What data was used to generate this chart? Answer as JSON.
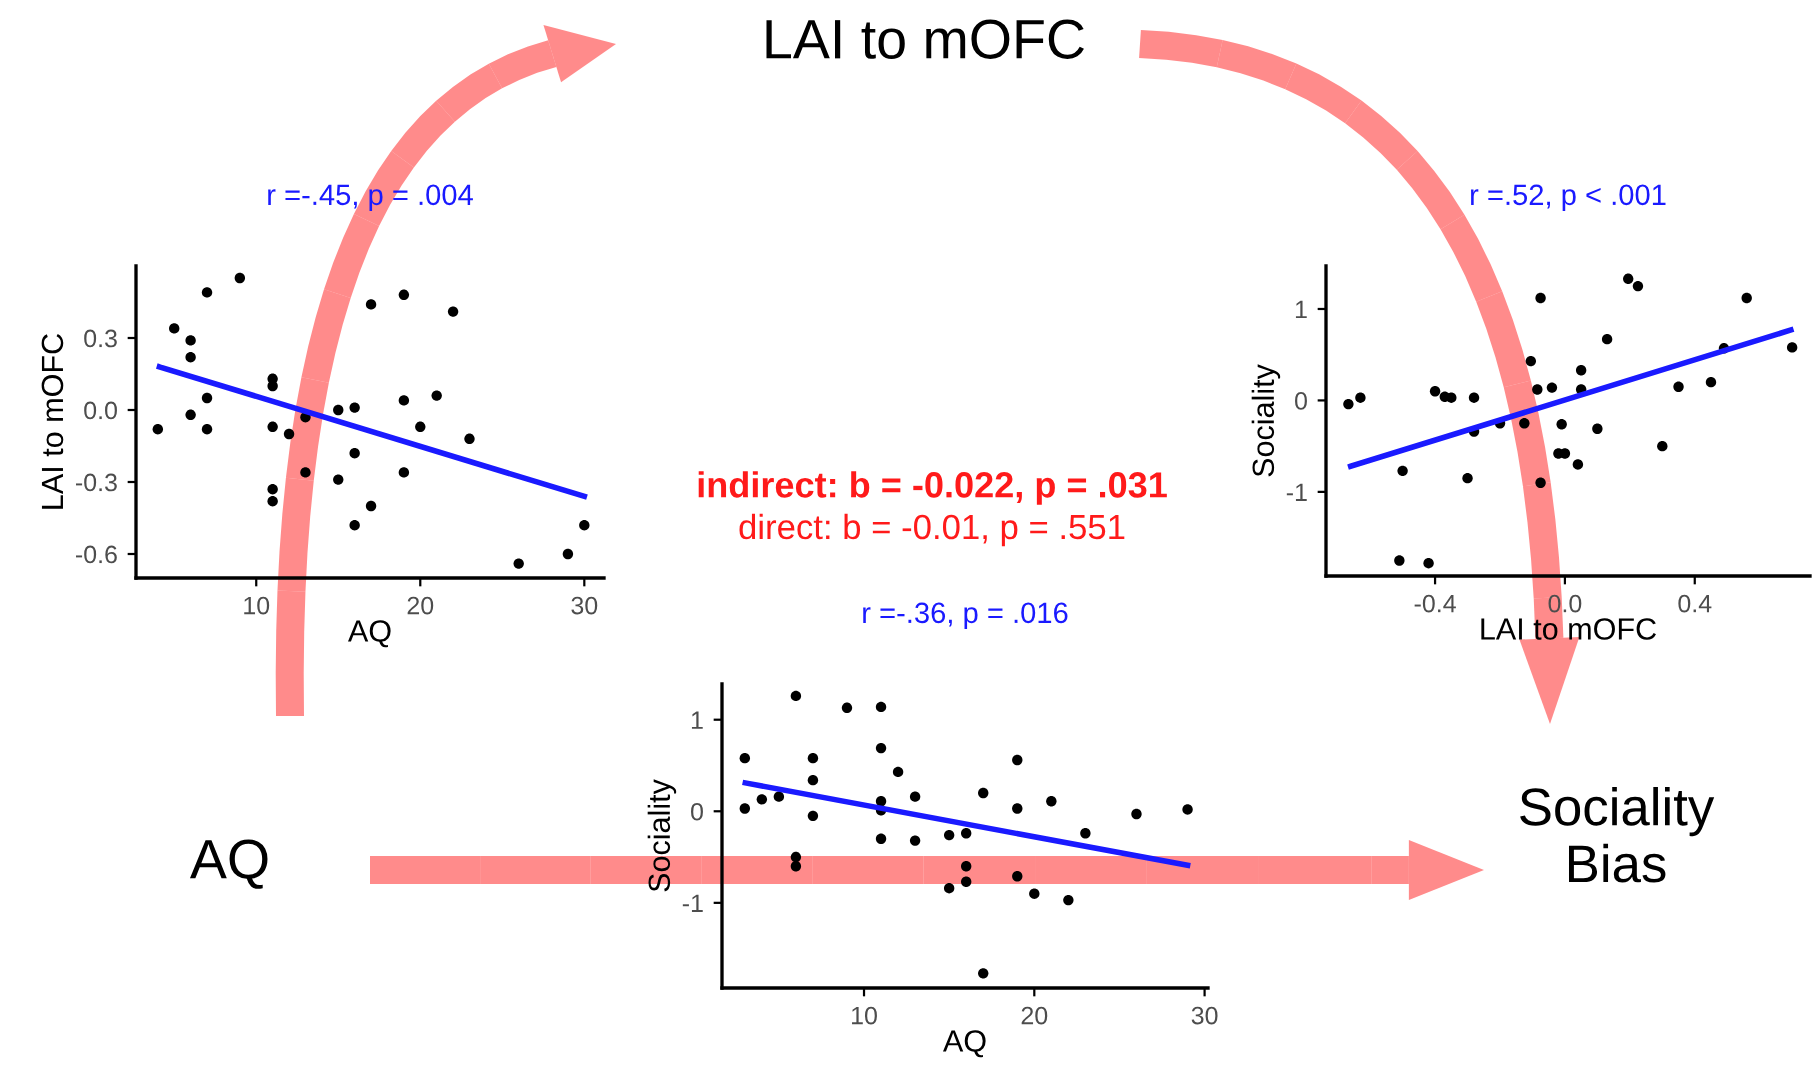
{
  "chart_data": [
    {
      "type": "scatter",
      "title": "r =-.45, p = .004",
      "xlabel": "AQ",
      "ylabel": "LAI to mOFC",
      "xlim": [
        2.67,
        31.2
      ],
      "ylim": [
        -0.7,
        0.6
      ],
      "xticks": [
        10,
        20,
        30
      ],
      "yticks": [
        -0.6,
        -0.3,
        {
          "value": 0,
          "label": "0.0"
        },
        0.3
      ],
      "grid": false,
      "series": [
        {
          "type": "scatter",
          "marker": "circle",
          "color": "#000000",
          "x": [
            4,
            5,
            6,
            6,
            6,
            7,
            7,
            7,
            9,
            11,
            11,
            11,
            11,
            11,
            12,
            13,
            13,
            15,
            15,
            16,
            16,
            16,
            17,
            17,
            19,
            19,
            19,
            20,
            21,
            22,
            23,
            26,
            29,
            30
          ],
          "values": [
            -0.08,
            0.34,
            0.29,
            0.22,
            -0.02,
            0.49,
            0.05,
            -0.08,
            0.55,
            0.13,
            0.1,
            -0.07,
            -0.33,
            -0.38,
            -0.1,
            -0.03,
            -0.26,
            0.0,
            -0.29,
            0.01,
            -0.18,
            -0.48,
            0.44,
            -0.4,
            0.48,
            0.04,
            -0.26,
            -0.07,
            0.06,
            0.41,
            -0.12,
            -0.64,
            -0.6,
            -0.48
          ]
        },
        {
          "type": "line",
          "marker": "none",
          "color": "#1a1aff",
          "x": [
            4.1,
            30
          ],
          "values": [
            0.18,
            -0.36
          ]
        }
      ]
    },
    {
      "type": "scatter",
      "title": "r =.52, p < .001",
      "xlabel": "LAI to mOFC",
      "ylabel": "Sociality",
      "xlim": [
        -0.736,
        0.755
      ],
      "ylim": [
        -1.92,
        1.47
      ],
      "xticks": [
        -0.4,
        {
          "value": 0,
          "label": "0.0"
        },
        0.4
      ],
      "yticks": [
        -1,
        0,
        1
      ],
      "grid": false,
      "series": [
        {
          "type": "scatter",
          "marker": "circle",
          "color": "#000000",
          "x": [
            -0.667,
            -0.63,
            -0.5,
            -0.51,
            -0.42,
            -0.4,
            -0.37,
            -0.35,
            -0.28,
            -0.28,
            -0.3,
            -0.2,
            -0.125,
            -0.105,
            -0.085,
            -0.075,
            -0.075,
            -0.04,
            -0.01,
            -0.02,
            0.0,
            0.04,
            0.05,
            0.05,
            0.1,
            0.13,
            0.195,
            0.225,
            0.3,
            0.35,
            0.45,
            0.49,
            0.56,
            0.7
          ],
          "values": [
            -0.04,
            0.03,
            -0.77,
            -1.75,
            -1.78,
            0.1,
            0.04,
            0.03,
            0.03,
            -0.34,
            -0.85,
            -0.25,
            -0.25,
            0.43,
            0.12,
            1.12,
            -0.9,
            0.14,
            -0.26,
            -0.58,
            -0.58,
            -0.7,
            0.33,
            0.12,
            -0.31,
            0.67,
            1.33,
            1.25,
            -0.5,
            0.15,
            0.2,
            0.57,
            1.12,
            0.58
          ]
        },
        {
          "type": "line",
          "marker": "none",
          "color": "#1a1aff",
          "x": [
            -0.66,
            0.696
          ],
          "values": [
            -0.72,
            0.77
          ]
        }
      ]
    },
    {
      "type": "scatter",
      "title": "r =-.36, p = .016",
      "xlabel": "AQ",
      "ylabel": "Sociality",
      "xlim": [
        1.66,
        30.2
      ],
      "ylim": [
        -1.93,
        1.39
      ],
      "xticks": [
        10,
        20,
        30
      ],
      "yticks": [
        -1,
        0,
        1
      ],
      "grid": false,
      "series": [
        {
          "type": "scatter",
          "marker": "circle",
          "color": "#000000",
          "x": [
            3,
            3,
            4,
            5,
            6,
            6,
            6,
            7,
            7,
            7,
            9,
            11,
            11,
            11,
            11,
            11,
            12,
            13,
            13,
            15,
            15,
            16,
            16,
            16,
            17,
            17,
            19,
            19,
            19,
            20,
            21,
            22,
            23,
            26,
            29
          ],
          "values": [
            0.58,
            0.03,
            0.13,
            0.16,
            1.26,
            -0.5,
            -0.6,
            0.58,
            0.34,
            -0.05,
            1.13,
            1.14,
            0.69,
            0.11,
            0.01,
            -0.3,
            0.43,
            0.16,
            -0.32,
            -0.26,
            -0.84,
            -0.24,
            -0.6,
            -0.77,
            0.2,
            -1.77,
            0.56,
            0.03,
            -0.71,
            -0.9,
            0.11,
            -0.97,
            -0.24,
            -0.03,
            0.02
          ]
        },
        {
          "type": "line",
          "marker": "none",
          "color": "#1a1aff",
          "x": [
            3.03,
            29
          ],
          "values": [
            0.31,
            -0.59
          ]
        }
      ]
    },
    {
      "type": "other",
      "annotations": [
        "LAI to mOFC",
        "AQ",
        "Sociality\nBias",
        "indirect: b = -0.022, p = .031",
        "direct: b = -0.01, p = .551"
      ]
    }
  ]
}
